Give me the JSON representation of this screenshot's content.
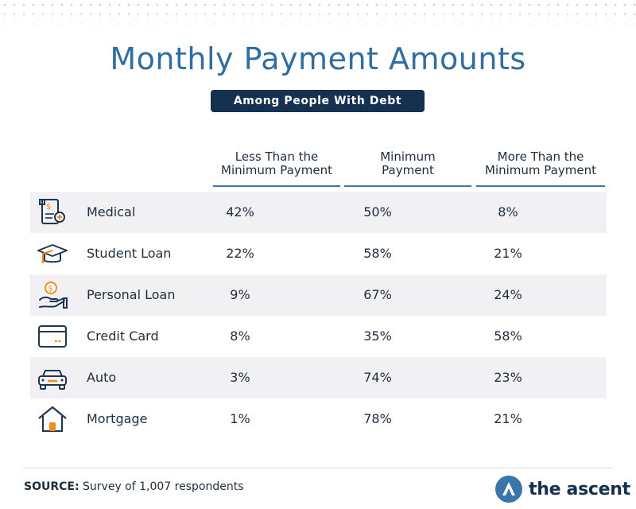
{
  "title": "Monthly Payment Amounts",
  "subtitle": "Among People With Debt",
  "columns": [
    {
      "line1": "Less Than the",
      "line2": "Minimum Payment"
    },
    {
      "line1": "Minimum",
      "line2": "Payment"
    },
    {
      "line1": "More Than the",
      "line2": "Minimum Payment"
    }
  ],
  "rows": [
    {
      "label": "Medical",
      "icon": "medical-bill-icon",
      "values": [
        "42%",
        "50%",
        "8%"
      ]
    },
    {
      "label": "Student Loan",
      "icon": "graduation-cap-icon",
      "values": [
        "22%",
        "58%",
        "21%"
      ]
    },
    {
      "label": "Personal Loan",
      "icon": "hand-coin-icon",
      "values": [
        "9%",
        "67%",
        "24%"
      ]
    },
    {
      "label": "Credit Card",
      "icon": "credit-card-icon",
      "values": [
        "8%",
        "35%",
        "58%"
      ]
    },
    {
      "label": "Auto",
      "icon": "car-icon",
      "values": [
        "3%",
        "74%",
        "23%"
      ]
    },
    {
      "label": "Mortgage",
      "icon": "house-icon",
      "values": [
        "1%",
        "78%",
        "21%"
      ]
    }
  ],
  "source": {
    "label": "SOURCE:",
    "text": "Survey of 1,007 respondents"
  },
  "brand": {
    "name": "the ascent"
  },
  "colors": {
    "title": "#2f6ea3",
    "badge": "#14314f",
    "accent": "#f28c1f",
    "rule": "#3a76ab",
    "row_shade": "#f1f1f3"
  }
}
